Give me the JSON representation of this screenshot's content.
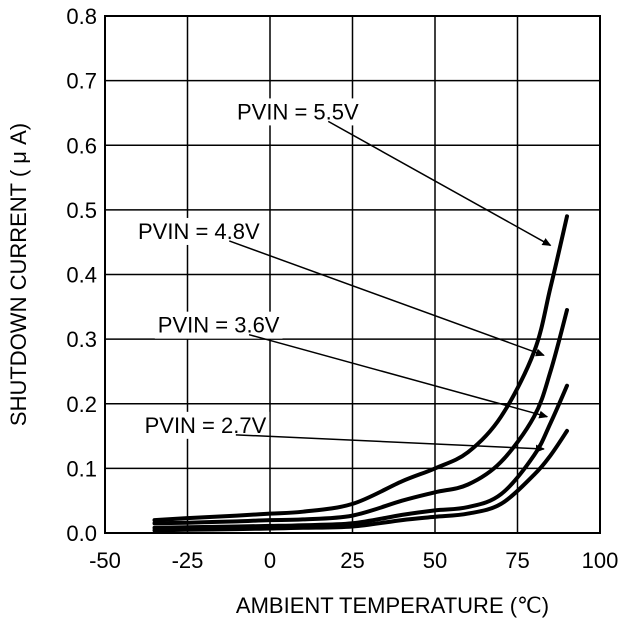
{
  "chart_data": {
    "type": "line",
    "title": "",
    "xlabel": "AMBIENT TEMPERATURE (℃)",
    "ylabel": "SHUTDOWN CURRENT ( μ A)",
    "xlim": [
      -50,
      100
    ],
    "ylim": [
      0.0,
      0.8
    ],
    "grid": true,
    "x_ticks": [
      "-50",
      "-25",
      "0",
      "25",
      "50",
      "75",
      "100"
    ],
    "y_ticks": [
      "0.0",
      "0.1",
      "0.2",
      "0.3",
      "0.4",
      "0.5",
      "0.6",
      "0.7",
      "0.8"
    ],
    "series": [
      {
        "name": "PVIN = 5.5V",
        "label": "PVIN = 5.5V",
        "x": [
          -35,
          -25,
          -10,
          0,
          10,
          25,
          40,
          50,
          60,
          70,
          80,
          85,
          90
        ],
        "y": [
          0.02,
          0.023,
          0.027,
          0.03,
          0.033,
          0.045,
          0.08,
          0.1,
          0.125,
          0.18,
          0.28,
          0.38,
          0.49
        ]
      },
      {
        "name": "PVIN = 4.8V",
        "label": "PVIN = 4.8V",
        "x": [
          -35,
          -25,
          -10,
          0,
          10,
          25,
          40,
          50,
          60,
          70,
          80,
          85,
          90
        ],
        "y": [
          0.015,
          0.016,
          0.018,
          0.02,
          0.021,
          0.027,
          0.05,
          0.063,
          0.075,
          0.11,
          0.18,
          0.25,
          0.345
        ]
      },
      {
        "name": "PVIN = 3.6V",
        "label": "PVIN = 3.6V",
        "x": [
          -35,
          -25,
          -10,
          0,
          10,
          25,
          40,
          50,
          60,
          70,
          80,
          85,
          90
        ],
        "y": [
          0.008,
          0.009,
          0.01,
          0.011,
          0.012,
          0.015,
          0.028,
          0.035,
          0.04,
          0.06,
          0.12,
          0.17,
          0.228
        ]
      },
      {
        "name": "PVIN = 2.7V",
        "label": "PVIN = 2.7V",
        "x": [
          -35,
          -25,
          -10,
          0,
          10,
          25,
          40,
          50,
          60,
          70,
          80,
          85,
          90
        ],
        "y": [
          0.004,
          0.005,
          0.006,
          0.007,
          0.008,
          0.01,
          0.02,
          0.025,
          0.03,
          0.045,
          0.09,
          0.12,
          0.158
        ]
      }
    ],
    "annotations": [
      {
        "text": "PVIN = 5.5V",
        "series": 0,
        "text_at": [
          -10,
          0.64
        ],
        "arrow_to": [
          85,
          0.445
        ]
      },
      {
        "text": "PVIN = 4.8V",
        "series": 1,
        "text_at": [
          -40,
          0.455
        ],
        "arrow_to": [
          83,
          0.275
        ]
      },
      {
        "text": "PVIN = 3.6V",
        "series": 2,
        "text_at": [
          -34,
          0.31
        ],
        "arrow_to": [
          84,
          0.18
        ]
      },
      {
        "text": "PVIN = 2.7V",
        "series": 3,
        "text_at": [
          -38,
          0.155
        ],
        "arrow_to": [
          83,
          0.13
        ]
      }
    ]
  }
}
